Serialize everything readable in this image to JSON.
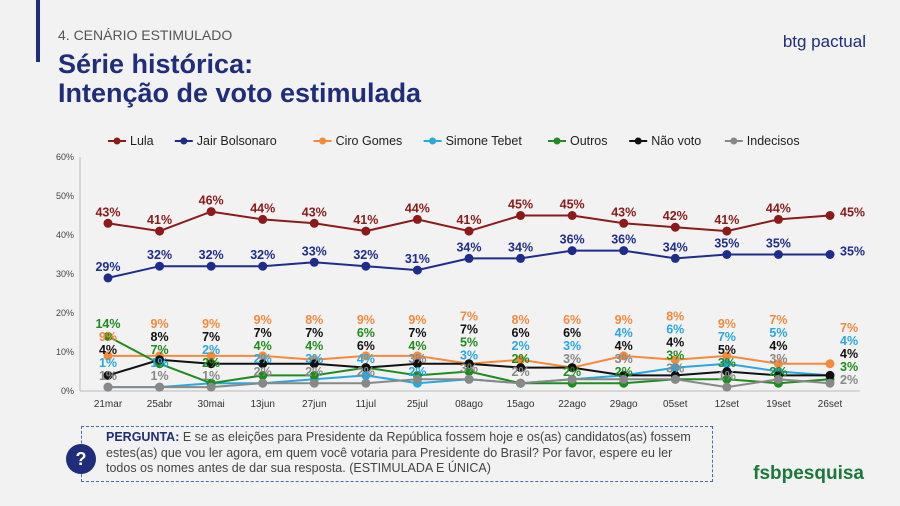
{
  "header": {
    "section": "4. CENÁRIO ESTIMULADO",
    "title_line1": "Série histórica:",
    "title_line2": "Intenção de voto estimulada",
    "logo": "btg pactual"
  },
  "footer": {
    "question_label": "PERGUNTA:",
    "question_text": "E se as eleições para Presidente da República fossem hoje e os(as) candidatos(as) fossem estes(as) que vou ler agora, em quem você votaria para Presidente do Brasil? Por favor, espere eu ler todos os nomes antes de dar sua resposta. (ESTIMULADA E ÚNICA)",
    "question_icon": "?",
    "logo": "fsbpesquisa"
  },
  "chart_data": {
    "type": "line",
    "ylim": [
      0,
      60
    ],
    "yticks": [
      "0%",
      "10%",
      "20%",
      "30%",
      "40%",
      "50%",
      "60%"
    ],
    "legend_position": "top",
    "categories": [
      "21mar",
      "25abr",
      "30mai",
      "13jun",
      "27jun",
      "11jul",
      "25jul",
      "08ago",
      "15ago",
      "22ago",
      "29ago",
      "05set",
      "12set",
      "19set",
      "26set"
    ],
    "series": [
      {
        "name": "Lula",
        "color": "#8b1a1a",
        "values": [
          43,
          41,
          46,
          44,
          43,
          41,
          44,
          41,
          45,
          45,
          43,
          42,
          41,
          44,
          45
        ]
      },
      {
        "name": "Jair Bolsonaro",
        "color": "#1f2d8a",
        "values": [
          29,
          32,
          32,
          32,
          33,
          32,
          31,
          34,
          34,
          36,
          36,
          34,
          35,
          35,
          35
        ]
      },
      {
        "name": "Ciro Gomes",
        "color": "#f58a3c",
        "values": [
          9,
          9,
          9,
          9,
          8,
          9,
          9,
          7,
          8,
          6,
          9,
          8,
          9,
          7,
          7
        ]
      },
      {
        "name": "Simone Tebet",
        "color": "#29a8e0",
        "values": [
          1,
          1,
          2,
          2,
          3,
          4,
          2,
          3,
          2,
          3,
          4,
          6,
          7,
          5,
          4
        ]
      },
      {
        "name": "Outros",
        "color": "#1e8c1e",
        "values": [
          14,
          7,
          2,
          4,
          4,
          6,
          4,
          5,
          2,
          2,
          2,
          3,
          3,
          2,
          3
        ]
      },
      {
        "name": "Não voto",
        "color": "#111111",
        "values": [
          4,
          8,
          7,
          7,
          7,
          6,
          7,
          7,
          6,
          6,
          4,
          4,
          5,
          4,
          4
        ]
      },
      {
        "name": "Indecisos",
        "color": "#888888",
        "values": [
          1,
          1,
          1,
          2,
          2,
          2,
          3,
          3,
          2,
          3,
          3,
          3,
          1,
          3,
          2
        ]
      }
    ]
  }
}
